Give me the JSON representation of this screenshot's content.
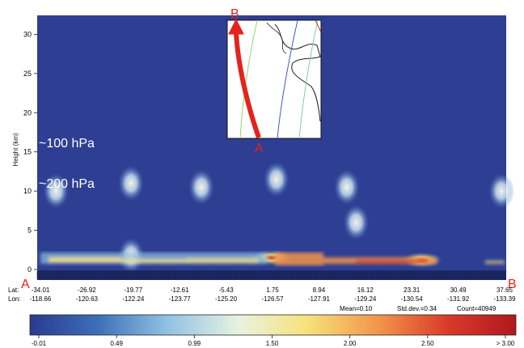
{
  "chart_data": {
    "type": "heatmap",
    "ylabel": "Height (km)",
    "y_ticks": [
      "0",
      "5",
      "10",
      "15",
      "20",
      "25",
      "30"
    ],
    "ylim": [
      0,
      32
    ],
    "annotations": {
      "p100": "~100 hPa",
      "p200": "~200 hPa",
      "start": "A",
      "end": "B",
      "inset_start": "A",
      "inset_end": "B"
    },
    "track_labels": {
      "lat": "Lat:",
      "lon": "Lon:"
    },
    "lat": [
      "-34.01",
      "-26.92",
      "-19.77",
      "-12.61",
      "-5.43",
      "1.75",
      "8.94",
      "16.12",
      "23.31",
      "30.49",
      "37.65"
    ],
    "lon": [
      "-118.66",
      "-120.63",
      "-122.24",
      "-123.77",
      "-125.20",
      "-126.57",
      "-127.91",
      "-129.24",
      "-130.54",
      "-131.92",
      "-133.39"
    ],
    "stats": {
      "mean": "Mean=0.10",
      "std": "Std.dev.=0.34",
      "count": "Count=40949"
    },
    "colorbar": {
      "ticks": [
        "-0.01",
        "0.49",
        "0.99",
        "1.50",
        "2.00",
        "2.50",
        "> 3.00"
      ],
      "colors": [
        "#2b3a8f",
        "#3d6fb8",
        "#8fc1e3",
        "#e8f3e0",
        "#f7e27a",
        "#f2934a",
        "#d83a2a",
        "#b0181f"
      ]
    },
    "features": [
      {
        "x": 0.04,
        "y": 10.0,
        "v": 0.9
      },
      {
        "x": 0.2,
        "y": 11.0,
        "v": 0.8
      },
      {
        "x": 0.35,
        "y": 10.5,
        "v": 0.9
      },
      {
        "x": 0.51,
        "y": 11.5,
        "v": 1.3
      },
      {
        "x": 0.66,
        "y": 10.5,
        "v": 1.6
      },
      {
        "x": 0.68,
        "y": 6.0,
        "v": 1.2
      },
      {
        "x": 0.99,
        "y": 10.0,
        "v": 0.7
      },
      {
        "x": 0.5,
        "y": 1.5,
        "v": 2.6
      },
      {
        "x": 0.82,
        "y": 1.2,
        "v": 2.8
      },
      {
        "x": 0.2,
        "y": 1.8,
        "v": 1.8
      }
    ]
  }
}
